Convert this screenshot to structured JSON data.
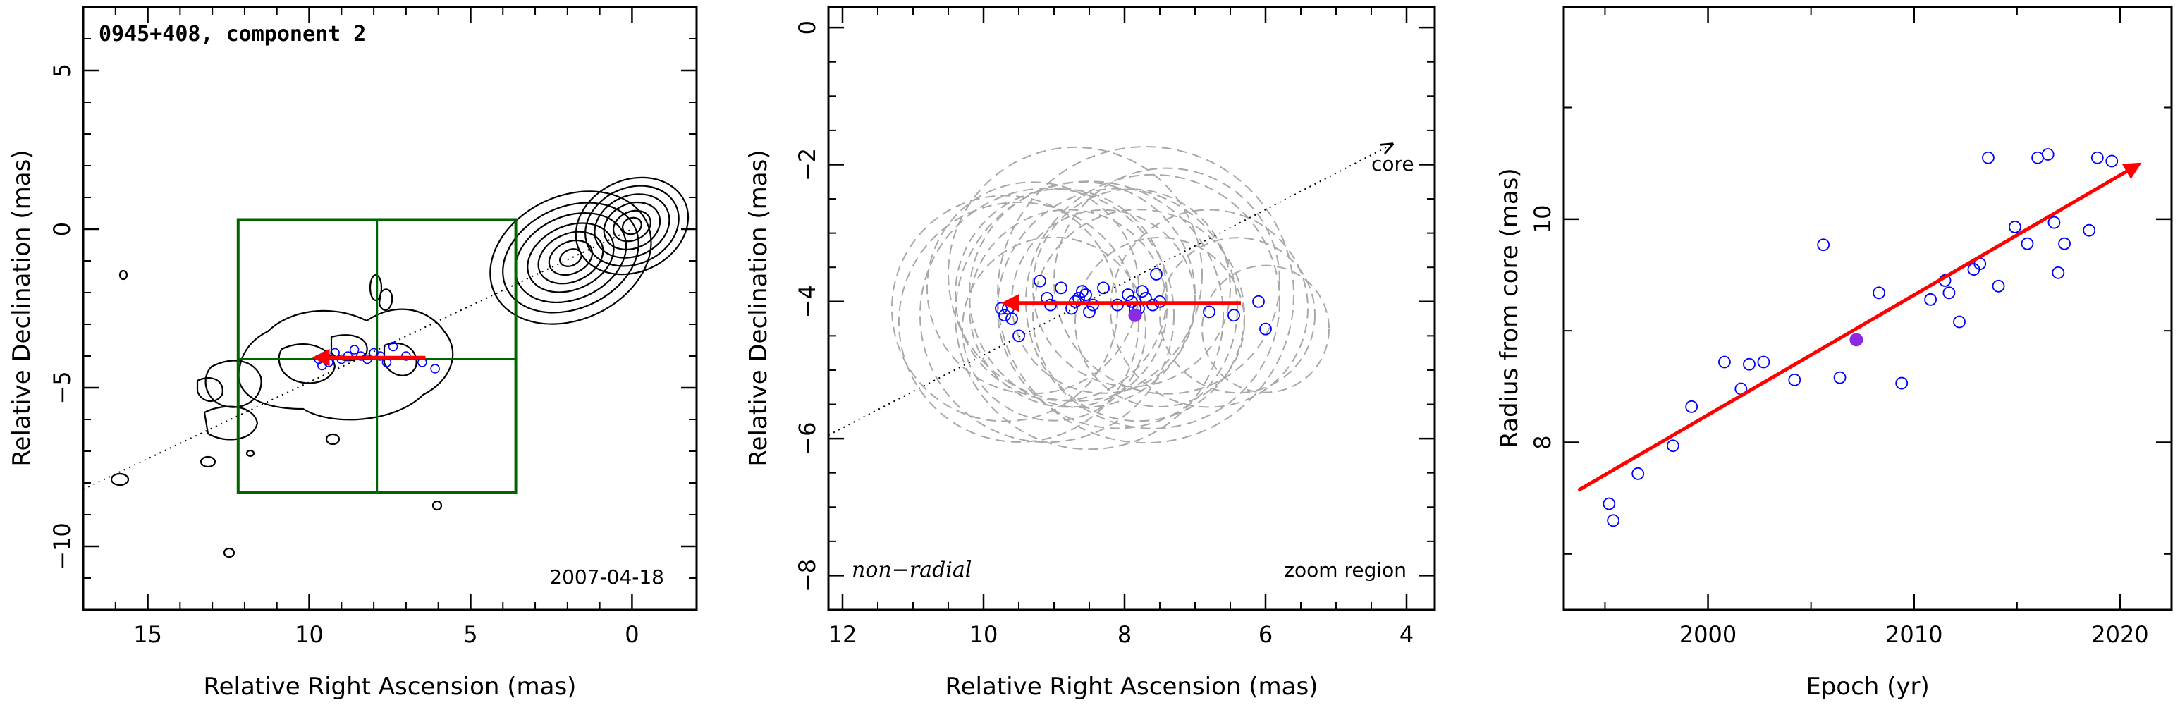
{
  "chart_data": [
    {
      "type": "scatter",
      "title": "0945+408, component 2",
      "date": "2007-04-18",
      "xlabel": "Relative Right Ascension (mas)",
      "ylabel": "Relative Declination (mas)",
      "xlim": [
        17,
        -2
      ],
      "ylim": [
        -12,
        7
      ],
      "x_ticks": [
        15,
        10,
        5,
        0
      ],
      "y_ticks": [
        5,
        0,
        -5,
        -10
      ],
      "grid": false,
      "core_contours": [
        {
          "cx": 0,
          "cy": 0.1,
          "rx": [
            0.3,
            0.6,
            0.9,
            1.2,
            1.5,
            1.8
          ],
          "ry": [
            0.25,
            0.45,
            0.7,
            0.95,
            1.2,
            1.45
          ]
        },
        {
          "cx": 1.9,
          "cy": -0.9,
          "rx": [
            0.35,
            0.7,
            1.05,
            1.4,
            1.8,
            2.2,
            2.6
          ],
          "ry": [
            0.25,
            0.5,
            0.75,
            1.0,
            1.3,
            1.6,
            1.95
          ]
        }
      ],
      "zoom_box": {
        "x": [
          12.2,
          3.6
        ],
        "y": [
          -8.3,
          0.3
        ],
        "cross_x": 7.9,
        "cross_y": -4.1
      },
      "trajectory_line": {
        "x": [
          17,
          0
        ],
        "y": [
          -8.2,
          0
        ]
      },
      "points": {
        "x": [
          9.7,
          9.6,
          9.5,
          9.4,
          9.2,
          9.0,
          8.8,
          8.6,
          8.4,
          8.2,
          8.0,
          7.8,
          7.6,
          7.4,
          7.0,
          6.5,
          6.1
        ],
        "y": [
          -4.1,
          -4.3,
          -4.0,
          -4.2,
          -3.9,
          -4.1,
          -4.0,
          -3.8,
          -4.0,
          -4.1,
          -3.9,
          -4.0,
          -4.2,
          -3.7,
          -4.0,
          -4.2,
          -4.4
        ]
      },
      "motion_arrow": {
        "x": [
          6.4,
          9.8
        ],
        "y": [
          -4.05,
          -4.05
        ]
      }
    },
    {
      "type": "scatter",
      "xlabel": "Relative Right Ascension (mas)",
      "ylabel": "Relative Declination (mas)",
      "xlim": [
        12.2,
        3.6
      ],
      "ylim": [
        -8.5,
        0.3
      ],
      "x_ticks": [
        12,
        10,
        8,
        6,
        4
      ],
      "y_ticks": [
        0,
        -2,
        -4,
        -6,
        -8
      ],
      "grid": false,
      "annotations": {
        "core": "core",
        "nonradial": "non−radial",
        "zoom": "zoom region"
      },
      "core_direction_line": {
        "x": [
          12.2,
          4.2
        ],
        "y": [
          -5.95,
          -1.7
        ]
      },
      "component_circles": [
        {
          "x": 9.7,
          "y": -4.1,
          "r": 1.6
        },
        {
          "x": 9.5,
          "y": -4.3,
          "r": 1.7
        },
        {
          "x": 9.3,
          "y": -3.8,
          "r": 1.5
        },
        {
          "x": 9.1,
          "y": -4.2,
          "r": 1.8
        },
        {
          "x": 8.9,
          "y": -3.9,
          "r": 1.5
        },
        {
          "x": 8.8,
          "y": -4.1,
          "r": 1.4
        },
        {
          "x": 8.6,
          "y": -3.9,
          "r": 1.6
        },
        {
          "x": 8.5,
          "y": -4.2,
          "r": 1.9
        },
        {
          "x": 8.3,
          "y": -4.0,
          "r": 1.3
        },
        {
          "x": 8.1,
          "y": -4.1,
          "r": 1.7
        },
        {
          "x": 7.9,
          "y": -3.8,
          "r": 1.4
        },
        {
          "x": 7.8,
          "y": -4.2,
          "r": 1.5
        },
        {
          "x": 7.7,
          "y": -3.9,
          "r": 2.1
        },
        {
          "x": 7.6,
          "y": -4.0,
          "r": 1.8
        },
        {
          "x": 7.5,
          "y": -4.3,
          "r": 1.2
        },
        {
          "x": 7.4,
          "y": -3.7,
          "r": 1.6
        },
        {
          "x": 6.8,
          "y": -4.1,
          "r": 1.4
        },
        {
          "x": 6.4,
          "y": -4.2,
          "r": 1.1
        },
        {
          "x": 6.0,
          "y": -4.4,
          "r": 0.9
        },
        {
          "x": 8.7,
          "y": -3.6,
          "r": 1.8
        },
        {
          "x": 9.0,
          "y": -4.4,
          "r": 1.3
        }
      ],
      "points": {
        "x": [
          9.75,
          9.7,
          9.6,
          9.5,
          9.2,
          9.1,
          9.05,
          8.9,
          8.75,
          8.7,
          8.6,
          8.55,
          8.5,
          8.45,
          8.3,
          8.1,
          7.95,
          7.9,
          7.8,
          7.75,
          7.7,
          7.6,
          7.5,
          7.55,
          6.8,
          6.45,
          6.1,
          6.0,
          9.65,
          8.65,
          7.85
        ],
        "y": [
          -4.1,
          -4.2,
          -4.25,
          -4.5,
          -3.7,
          -3.95,
          -4.05,
          -3.8,
          -4.1,
          -4.0,
          -3.85,
          -3.9,
          -4.15,
          -4.05,
          -3.8,
          -4.05,
          -3.9,
          -4.0,
          -4.1,
          -3.85,
          -3.95,
          -4.05,
          -4.0,
          -3.6,
          -4.15,
          -4.2,
          -4.0,
          -4.4,
          -4.1,
          -3.95,
          -4.1
        ]
      },
      "highlight": {
        "x": 7.85,
        "y": -4.2
      },
      "motion_arrow": {
        "x": [
          6.35,
          9.7
        ],
        "y": [
          -4.02,
          -4.02
        ]
      }
    },
    {
      "type": "scatter",
      "xlabel": "Epoch (yr)",
      "ylabel": "Radius from core (mas)",
      "xlim": [
        1993,
        2022.5
      ],
      "ylim": [
        6.5,
        11.9
      ],
      "x_ticks": [
        2000,
        2010,
        2020
      ],
      "y_ticks": [
        8,
        10
      ],
      "grid": false,
      "points": {
        "x": [
          1995.2,
          1995.4,
          1996.6,
          1998.3,
          1999.2,
          2000.8,
          2001.6,
          2002.0,
          2002.7,
          2004.2,
          2005.6,
          2006.4,
          2008.3,
          2009.4,
          2010.8,
          2011.5,
          2011.7,
          2012.2,
          2012.9,
          2013.2,
          2013.6,
          2014.1,
          2014.9,
          2015.5,
          2016.0,
          2016.5,
          2016.8,
          2017.0,
          2017.3,
          2018.5,
          2018.9,
          2019.6
        ],
        "y": [
          7.45,
          7.3,
          7.72,
          7.97,
          8.32,
          8.72,
          8.48,
          8.7,
          8.72,
          8.56,
          9.77,
          8.58,
          9.34,
          8.53,
          9.28,
          9.45,
          9.34,
          9.08,
          9.55,
          9.6,
          10.55,
          9.4,
          9.93,
          9.78,
          10.55,
          10.58,
          9.97,
          9.52,
          9.78,
          9.9,
          10.55,
          10.52
        ]
      },
      "highlight": {
        "x": 2007.2,
        "y": 8.92
      },
      "trend_arrow": {
        "x": [
          1993.7,
          2020.9
        ],
        "y": [
          7.57,
          10.49
        ]
      }
    }
  ]
}
